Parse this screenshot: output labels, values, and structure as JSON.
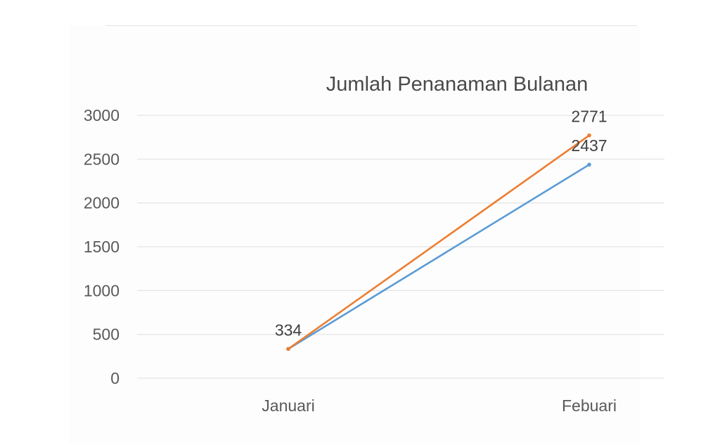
{
  "chart_data": {
    "type": "line",
    "title": "Jumlah Penanaman Bulanan",
    "categories": [
      "Januari",
      "Febuari"
    ],
    "series": [
      {
        "color": "#ed7d31",
        "values": [
          334,
          2771
        ]
      },
      {
        "color": "#5b9bd5",
        "values": [
          334,
          2437
        ]
      }
    ],
    "data_labels": [
      {
        "series": 0,
        "point": 0,
        "text": "334"
      },
      {
        "series": 0,
        "point": 1,
        "text": "2771"
      },
      {
        "series": 1,
        "point": 1,
        "text": "2437"
      }
    ],
    "ylim": [
      0,
      3000
    ],
    "yticks": [
      0,
      500,
      1000,
      1500,
      2000,
      2500,
      3000
    ],
    "grid": true,
    "legend": "none"
  }
}
